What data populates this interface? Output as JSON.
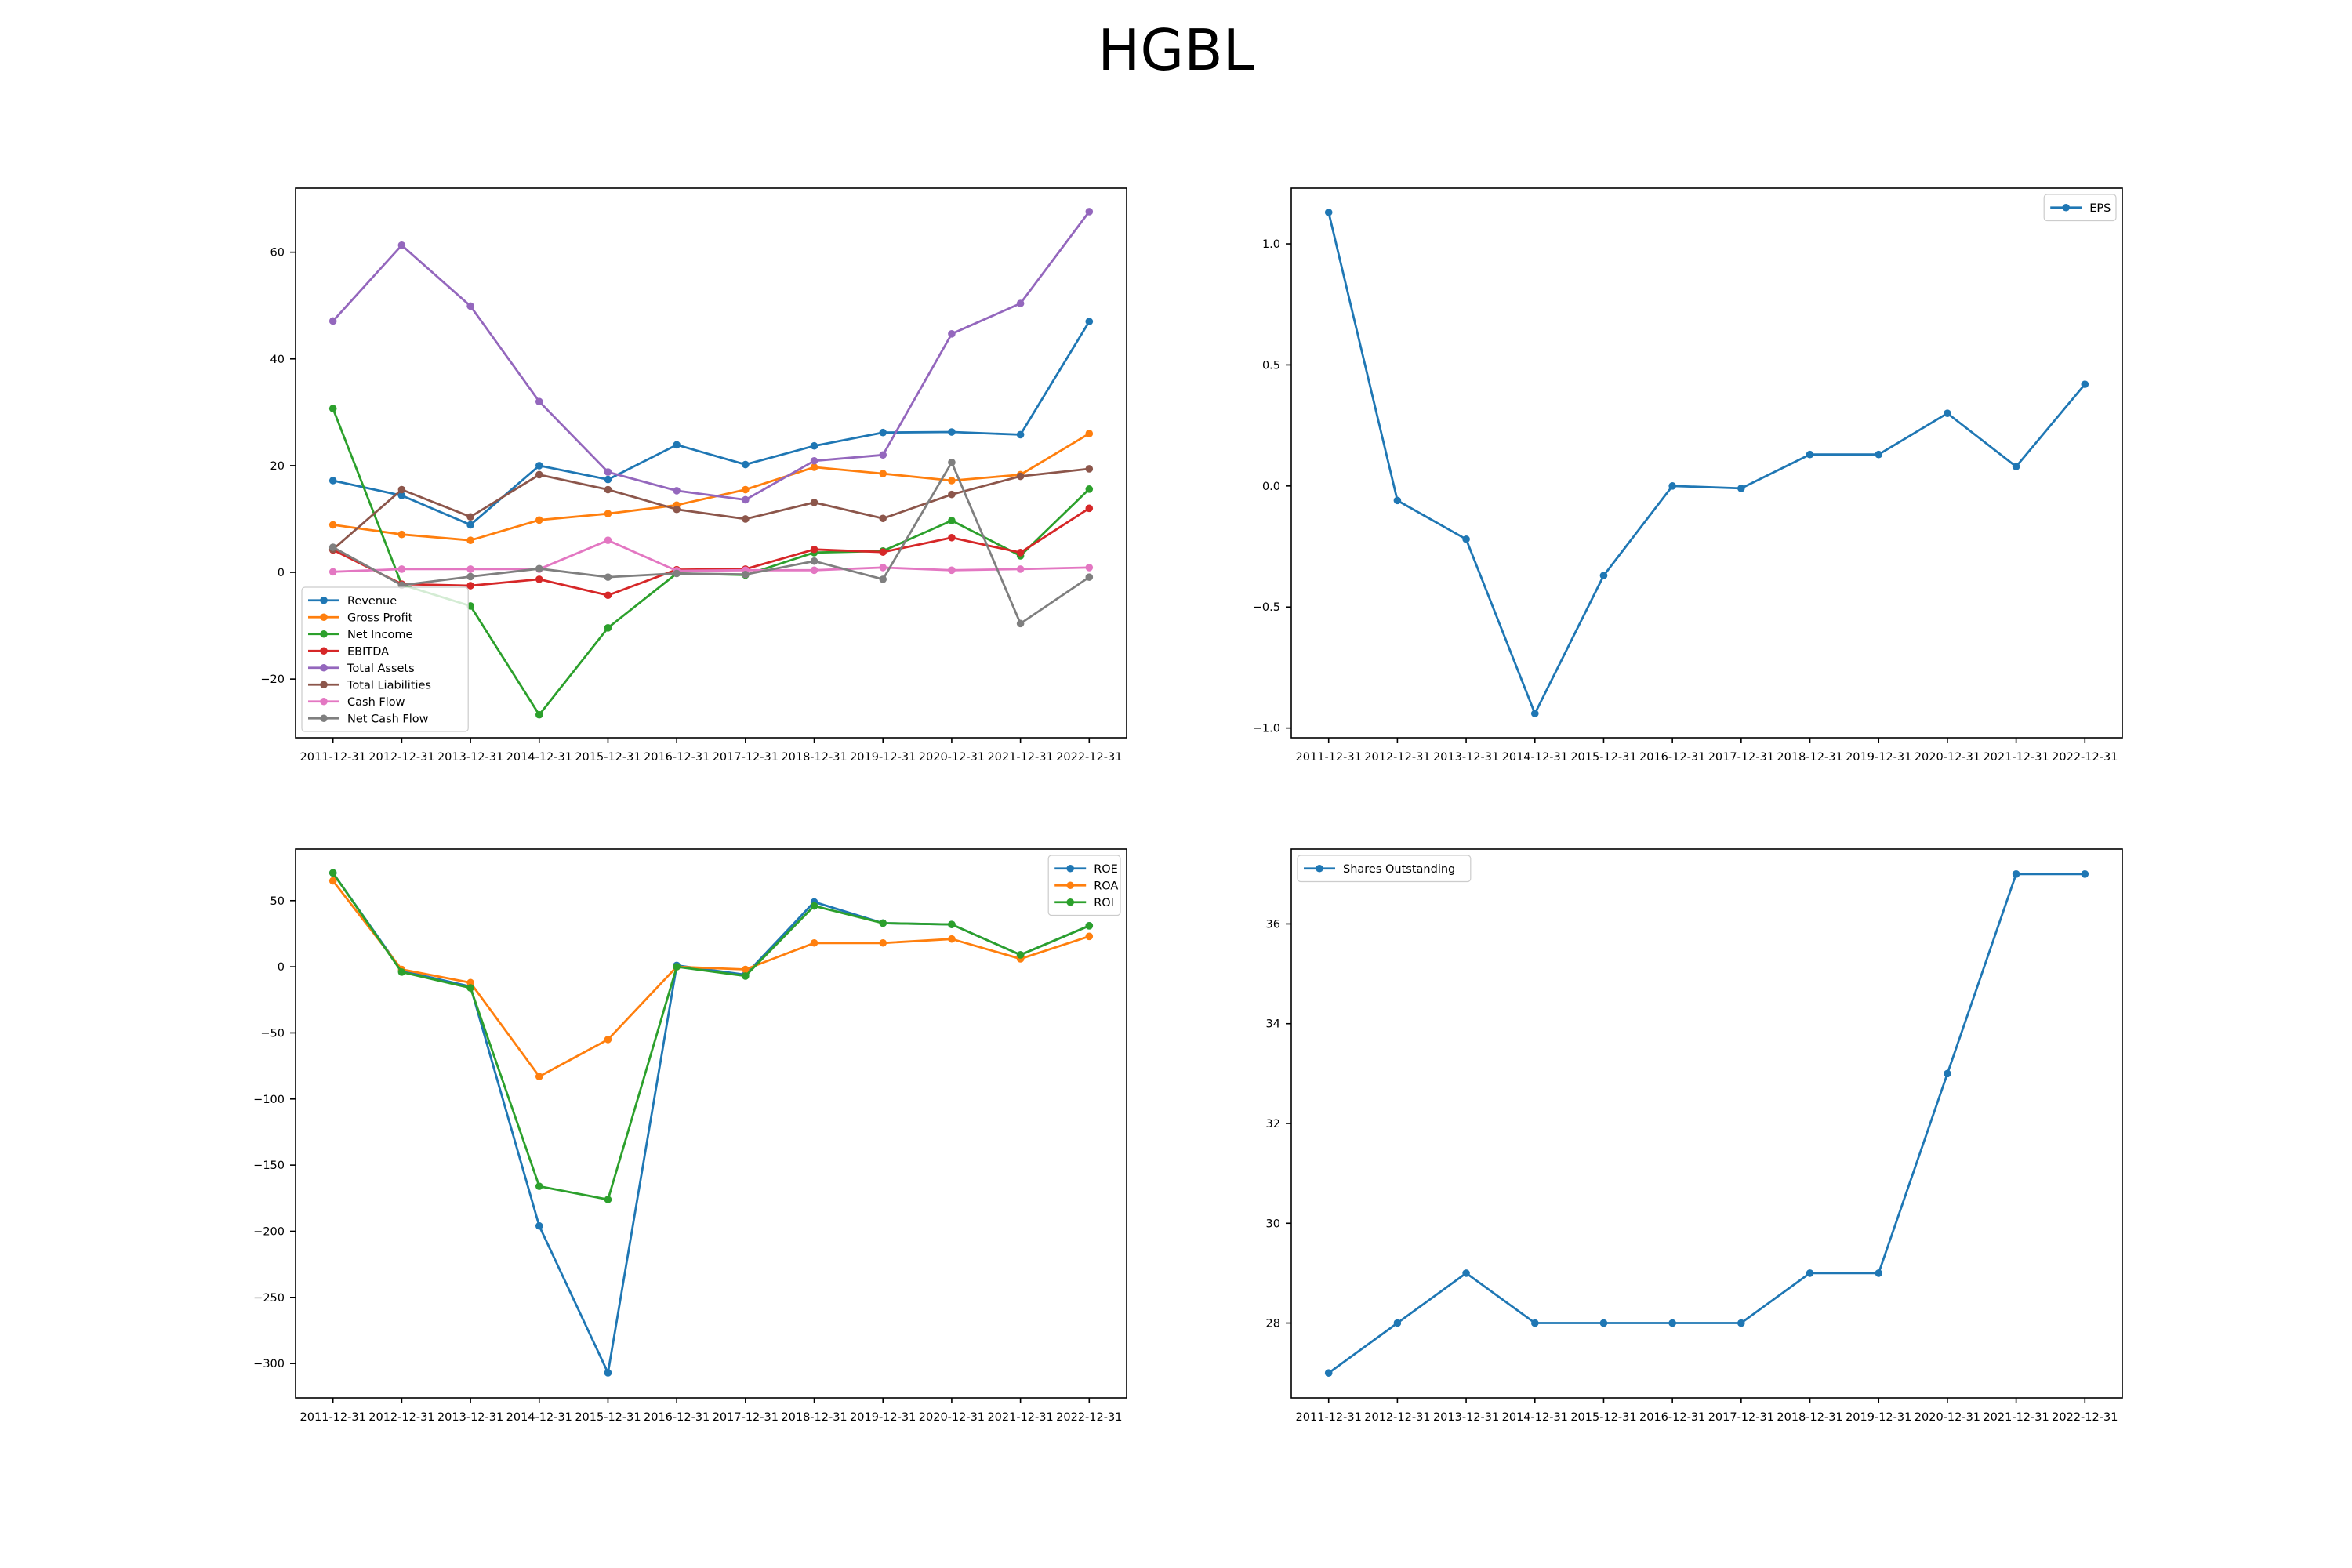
{
  "figure_title": "HGBL",
  "chart_data": [
    {
      "type": "line",
      "categories": [
        "2011-12-31",
        "2012-12-31",
        "2013-12-31",
        "2014-12-31",
        "2015-12-31",
        "2016-12-31",
        "2017-12-31",
        "2018-12-31",
        "2019-12-31",
        "2020-12-31",
        "2021-12-31",
        "2022-12-31"
      ],
      "ylim": [
        -31,
        72
      ],
      "yticks": [
        -20,
        0,
        20,
        40,
        60
      ],
      "grid": false,
      "legend": "lower-left",
      "series": [
        {
          "name": "Revenue",
          "color": "#1f77b4",
          "values": [
            17.2,
            14.4,
            8.9,
            20.0,
            17.4,
            23.9,
            20.2,
            23.7,
            26.2,
            26.3,
            25.8,
            47.0
          ]
        },
        {
          "name": "Gross Profit",
          "color": "#ff7f0e",
          "values": [
            8.9,
            7.1,
            6.0,
            9.8,
            11.0,
            12.6,
            15.5,
            19.7,
            18.5,
            17.2,
            18.3,
            26.0
          ]
        },
        {
          "name": "Net Income",
          "color": "#2ca02c",
          "values": [
            30.7,
            -2.3,
            -6.3,
            -26.7,
            -10.4,
            -0.2,
            -0.5,
            3.7,
            4.0,
            9.7,
            3.1,
            15.6
          ]
        },
        {
          "name": "EBITDA",
          "color": "#d62728",
          "values": [
            4.2,
            -2.2,
            -2.5,
            -1.3,
            -4.3,
            0.5,
            0.6,
            4.3,
            3.8,
            6.5,
            3.7,
            12.0
          ]
        },
        {
          "name": "Total Assets",
          "color": "#9467bd",
          "values": [
            47.1,
            61.3,
            49.9,
            32.0,
            18.8,
            15.3,
            13.6,
            20.9,
            22.0,
            44.7,
            50.4,
            67.6
          ]
        },
        {
          "name": "Total Liabilities",
          "color": "#8c564b",
          "values": [
            4.3,
            15.5,
            10.4,
            18.3,
            15.5,
            11.8,
            10.0,
            13.1,
            10.1,
            14.6,
            18.0,
            19.4
          ]
        },
        {
          "name": "Cash Flow",
          "color": "#e377c2",
          "values": [
            0.1,
            0.6,
            0.6,
            0.6,
            6.0,
            0.3,
            0.4,
            0.4,
            0.9,
            0.4,
            0.6,
            0.9
          ]
        },
        {
          "name": "Net Cash Flow",
          "color": "#7f7f7f",
          "values": [
            4.7,
            -2.4,
            -0.8,
            0.7,
            -0.9,
            -0.2,
            -0.4,
            2.1,
            -1.3,
            20.6,
            -9.6,
            -0.9
          ]
        }
      ]
    },
    {
      "type": "line",
      "categories": [
        "2011-12-31",
        "2012-12-31",
        "2013-12-31",
        "2014-12-31",
        "2015-12-31",
        "2016-12-31",
        "2017-12-31",
        "2018-12-31",
        "2019-12-31",
        "2020-12-31",
        "2021-12-31",
        "2022-12-31"
      ],
      "ylim": [
        -1.04,
        1.23
      ],
      "yticks": [
        -1.0,
        -0.5,
        0.0,
        0.5,
        1.0
      ],
      "tick_format": "fixed1",
      "grid": false,
      "legend": "upper-right",
      "series": [
        {
          "name": "EPS",
          "color": "#1f77b4",
          "values": [
            1.13,
            -0.06,
            -0.22,
            -0.94,
            -0.37,
            0.0,
            -0.01,
            0.13,
            0.13,
            0.3,
            0.08,
            0.42
          ]
        }
      ]
    },
    {
      "type": "line",
      "categories": [
        "2011-12-31",
        "2012-12-31",
        "2013-12-31",
        "2014-12-31",
        "2015-12-31",
        "2016-12-31",
        "2017-12-31",
        "2018-12-31",
        "2019-12-31",
        "2020-12-31",
        "2021-12-31",
        "2022-12-31"
      ],
      "ylim": [
        -326,
        89
      ],
      "yticks": [
        -300,
        -250,
        -200,
        -150,
        -100,
        -50,
        0,
        50
      ],
      "grid": false,
      "legend": "upper-right",
      "series": [
        {
          "name": "ROE",
          "color": "#1f77b4",
          "values": [
            71,
            -3,
            -15,
            -196,
            -307,
            1,
            -6,
            49,
            33,
            32,
            9,
            31
          ]
        },
        {
          "name": "ROA",
          "color": "#ff7f0e",
          "values": [
            65,
            -2,
            -12,
            -83,
            -55,
            0,
            -2,
            18,
            18,
            21,
            6,
            23
          ]
        },
        {
          "name": "ROI",
          "color": "#2ca02c",
          "values": [
            71,
            -4,
            -16,
            -166,
            -176,
            0,
            -7,
            46,
            33,
            32,
            9,
            31
          ]
        }
      ]
    },
    {
      "type": "line",
      "categories": [
        "2011-12-31",
        "2012-12-31",
        "2013-12-31",
        "2014-12-31",
        "2015-12-31",
        "2016-12-31",
        "2017-12-31",
        "2018-12-31",
        "2019-12-31",
        "2020-12-31",
        "2021-12-31",
        "2022-12-31"
      ],
      "ylim": [
        26.5,
        37.5
      ],
      "yticks": [
        28,
        30,
        32,
        34,
        36
      ],
      "grid": false,
      "legend": "upper-left",
      "series": [
        {
          "name": "Shares Outstanding",
          "color": "#1f77b4",
          "values": [
            27,
            28,
            29,
            28,
            28,
            28,
            28,
            29,
            29,
            33,
            37,
            37
          ]
        }
      ]
    }
  ]
}
